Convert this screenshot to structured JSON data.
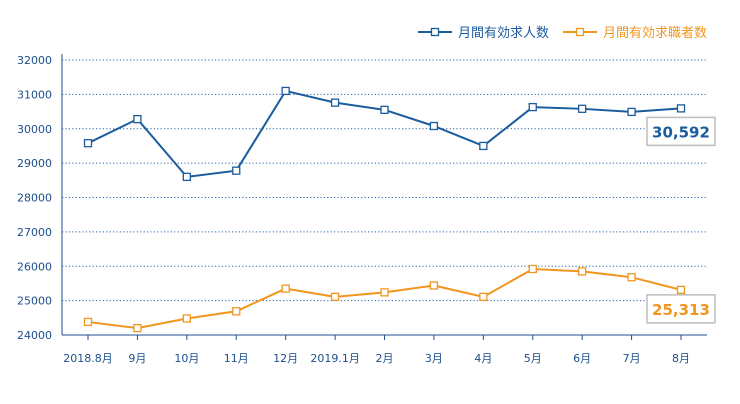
{
  "chart_data": {
    "type": "line",
    "categories": [
      "2018.8月",
      "9月",
      "10月",
      "11月",
      "12月",
      "2019.1月",
      "2月",
      "3月",
      "4月",
      "5月",
      "6月",
      "7月",
      "8月"
    ],
    "series": [
      {
        "name": "月間有効求人数",
        "color": "#1b5c9e",
        "values": [
          29580,
          30280,
          28600,
          28780,
          31100,
          30760,
          30550,
          30080,
          29500,
          30630,
          30580,
          30490,
          30592
        ],
        "end_label": "30,592"
      },
      {
        "name": "月間有効求職者数",
        "color": "#f0961e",
        "values": [
          24380,
          24200,
          24480,
          24690,
          25350,
          25110,
          25240,
          25440,
          25110,
          25920,
          25850,
          25680,
          25313
        ],
        "end_label": "25,313"
      }
    ],
    "yticks": [
      24000,
      25000,
      26000,
      27000,
      28000,
      29000,
      30000,
      31000,
      32000
    ],
    "ylim": [
      24000,
      32000
    ],
    "grid": "horizontal-dotted",
    "legend_position": "top-right",
    "title": "",
    "xlabel": "",
    "ylabel": ""
  }
}
